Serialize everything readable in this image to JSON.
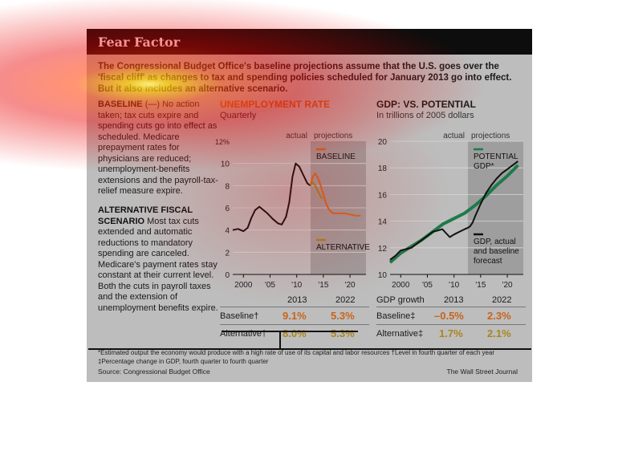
{
  "panel": {
    "title": "Fear Factor",
    "intro": "The Congressional Budget Office's baseline projections assume that the U.S. goes over the 'fiscal cliff' as changes to tax and spending policies scheduled for January 2013 go into effect. But it also includes an alternative scenario.",
    "baseline_head": "BASELINE",
    "baseline_text": "(—) No action taken; tax cuts expire and spending cuts go into effect as scheduled. Medicare prepayment rates for physicians are reduced; unemployment-benefits extensions and the payroll-tax-relief measure expire.",
    "alt_head": "ALTERNATIVE FISCAL SCENARIO",
    "alt_text": "Most tax cuts extended and automatic reductions to mandatory spending are canceled. Medicare's payment rates stay constant at their current level. Both the cuts in payroll taxes and the extension of unemployment benefits expire.",
    "footnote1": "*Estimated output the economy would produce with a high rate of use of its capital and labor resources   †Level in fourth quarter of each year",
    "footnote2": "‡Percentage change in GDP, fourth quarter to fourth quarter",
    "source": "Source: Congressional Budget Office",
    "credit": "The Wall Street Journal",
    "colors": {
      "baseline": "#d4691f",
      "alternative": "#a8861e",
      "potential": "#1f7a4a",
      "actual": "#111111",
      "projection_shade": "#9e9e9e"
    }
  },
  "unemp_table": {
    "years": [
      "2013",
      "2022"
    ],
    "rows": [
      {
        "label": "Baseline†",
        "values": [
          "9.1%",
          "5.3%"
        ]
      },
      {
        "label": "Alternative†",
        "values": [
          "8.0%",
          "5.3%"
        ]
      }
    ]
  },
  "gdp_table": {
    "head": "GDP growth",
    "years": [
      "2013",
      "2022"
    ],
    "rows": [
      {
        "label": "Baseline‡",
        "values": [
          "–0.5%",
          "2.3%"
        ]
      },
      {
        "label": "Alternative‡",
        "values": [
          "1.7%",
          "2.1%"
        ]
      }
    ]
  },
  "chart_data": [
    {
      "type": "line",
      "title": "UNEMPLOYMENT RATE",
      "subtitle": "Quarterly",
      "xlim": [
        1998,
        2023
      ],
      "ylim": [
        0,
        12
      ],
      "yticks": [
        0,
        2,
        4,
        6,
        8,
        10
      ],
      "ytick_top_label": "12%",
      "xticks": [
        2000,
        2005,
        2010,
        2015,
        2020
      ],
      "xtick_labels": [
        "2000",
        "'05",
        "'10",
        "'15",
        "'20"
      ],
      "actual_label": "actual",
      "projections_label": "projections",
      "projection_start": 2012.6,
      "series": [
        {
          "name": "actual",
          "x": [
            1998,
            1999,
            2000,
            2000.8,
            2001.5,
            2002.2,
            2003,
            2003.5,
            2004.5,
            2005.5,
            2006.5,
            2007.2,
            2008,
            2008.6,
            2009.2,
            2009.8,
            2010.5,
            2011.2,
            2012,
            2012.6
          ],
          "y": [
            4.0,
            4.1,
            3.9,
            4.2,
            5.1,
            5.8,
            6.1,
            5.9,
            5.5,
            5.0,
            4.6,
            4.5,
            5.2,
            6.5,
            8.8,
            10.0,
            9.7,
            9.0,
            8.2,
            8.0
          ]
        },
        {
          "name": "BASELINE",
          "x": [
            2012.6,
            2013,
            2013.5,
            2014,
            2014.5,
            2015,
            2015.5,
            2016,
            2016.5,
            2017,
            2018,
            2019,
            2020,
            2021,
            2022
          ],
          "y": [
            8.0,
            8.8,
            9.1,
            8.7,
            8.0,
            7.2,
            6.4,
            5.9,
            5.6,
            5.5,
            5.5,
            5.5,
            5.4,
            5.3,
            5.3
          ]
        },
        {
          "name": "ALTERNATIVE",
          "x": [
            2012.6,
            2013,
            2013.5,
            2014,
            2014.5,
            2014.8
          ],
          "y": [
            8.0,
            8.3,
            8.0,
            7.5,
            7.0,
            6.8
          ]
        }
      ]
    },
    {
      "type": "line",
      "title": "GDP: VS. POTENTIAL",
      "subtitle": "In trillions of 2005 dollars",
      "xlim": [
        1998,
        2023
      ],
      "ylim": [
        10,
        20
      ],
      "yticks": [
        10,
        12,
        14,
        16,
        18,
        20
      ],
      "xticks": [
        2000,
        2005,
        2010,
        2015,
        2020
      ],
      "xtick_labels": [
        "2000",
        "'05",
        "'10",
        "'15",
        "'20"
      ],
      "actual_label": "actual",
      "projections_label": "projections",
      "projection_start": 2012.6,
      "series": [
        {
          "name": "POTENTIAL GDP*",
          "x": [
            1998,
            2000,
            2002,
            2004,
            2006,
            2008,
            2010,
            2012,
            2014,
            2016,
            2018,
            2020,
            2022
          ],
          "y": [
            10.9,
            11.6,
            12.1,
            12.6,
            13.2,
            13.8,
            14.2,
            14.6,
            15.2,
            15.9,
            16.7,
            17.4,
            18.2
          ]
        },
        {
          "name": "GDP, actual and baseline forecast",
          "x": [
            1998,
            1999,
            2000,
            2001,
            2002,
            2003,
            2004,
            2005,
            2006,
            2007,
            2007.8,
            2008.5,
            2009.2,
            2010,
            2011,
            2012,
            2012.6,
            2013,
            2013.5,
            2014,
            2015,
            2016,
            2017,
            2018,
            2019,
            2020,
            2021,
            2022
          ],
          "y": [
            11.1,
            11.4,
            11.8,
            11.9,
            12.0,
            12.3,
            12.6,
            12.9,
            13.2,
            13.3,
            13.4,
            13.1,
            12.8,
            13.0,
            13.2,
            13.4,
            13.5,
            13.6,
            13.9,
            14.4,
            15.3,
            16.1,
            16.7,
            17.2,
            17.6,
            17.9,
            18.2,
            18.5
          ]
        }
      ]
    }
  ]
}
